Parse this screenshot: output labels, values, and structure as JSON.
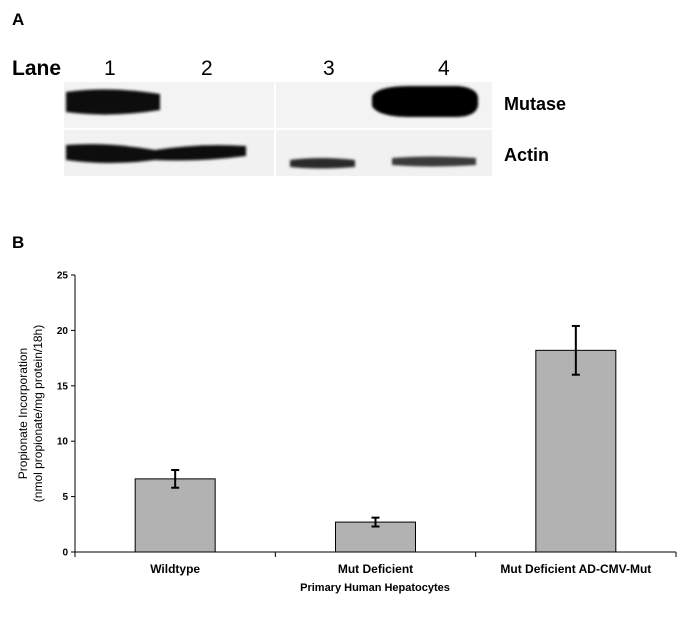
{
  "panel_a": {
    "label": "A",
    "lane_word": "Lane",
    "lanes": [
      "1",
      "2",
      "3",
      "4"
    ],
    "row_labels": [
      "Mutase",
      "Actin"
    ]
  },
  "panel_b": {
    "label": "B"
  },
  "chart_data": {
    "type": "bar",
    "categories": [
      "Wildtype",
      "Mut Deficient",
      "Mut Deficient AD-CMV-Mut"
    ],
    "values": [
      6.6,
      2.7,
      18.2
    ],
    "errors": [
      0.8,
      0.4,
      2.2
    ],
    "ylim": [
      0,
      25
    ],
    "yticks": [
      0,
      5,
      10,
      15,
      20,
      25
    ],
    "xlabel": "Primary Human Hepatocytes",
    "ylabel_line1": "Propionate Incorporation",
    "ylabel_line2": "(nmol propionate/mg protein/18h)",
    "bar_color": "#b2b2b2"
  }
}
